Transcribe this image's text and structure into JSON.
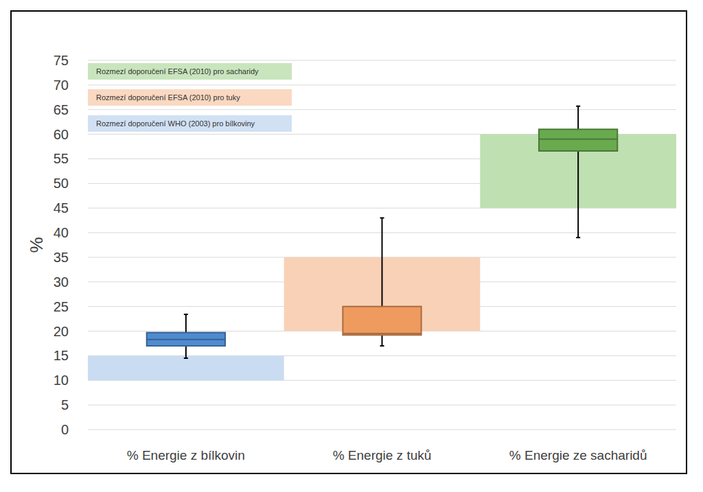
{
  "chart_data": {
    "type": "box",
    "y_label": "%",
    "categories": [
      "% Energie z bílkovin",
      "% Energie z tuků",
      "% Energie ze sacharidů"
    ],
    "boxes": [
      {
        "min": 14.5,
        "q1": 17,
        "median": 18.3,
        "q3": 19.7,
        "max": 23.4
      },
      {
        "min": 17,
        "q1": 19.2,
        "median": 19.5,
        "q3": 25,
        "max": 43
      },
      {
        "min": 39,
        "q1": 56.6,
        "median": 59,
        "q3": 61,
        "max": 65.7
      }
    ],
    "colors": [
      "#4f8bd0",
      "#ef9a5e",
      "#6aaa4f"
    ],
    "recommendations": [
      {
        "name": "Rozmezí doporučení WHO (2003) pro bílkoviny",
        "low": 10,
        "high": 15,
        "color": "#c9dcf1"
      },
      {
        "name": "Rozmezí doporučení EFSA (2010) pro tuky",
        "low": 20,
        "high": 35,
        "color": "#f9d1b6"
      },
      {
        "name": "Rozmezí doporučení EFSA (2010) pro sacharidy",
        "low": 45,
        "high": 60,
        "color": "#bfe0b1"
      }
    ],
    "ylim": [
      0,
      75
    ],
    "yticks": [
      0,
      5,
      10,
      15,
      20,
      25,
      30,
      35,
      40,
      45,
      50,
      55,
      60,
      65,
      70,
      75
    ],
    "grid": true
  }
}
